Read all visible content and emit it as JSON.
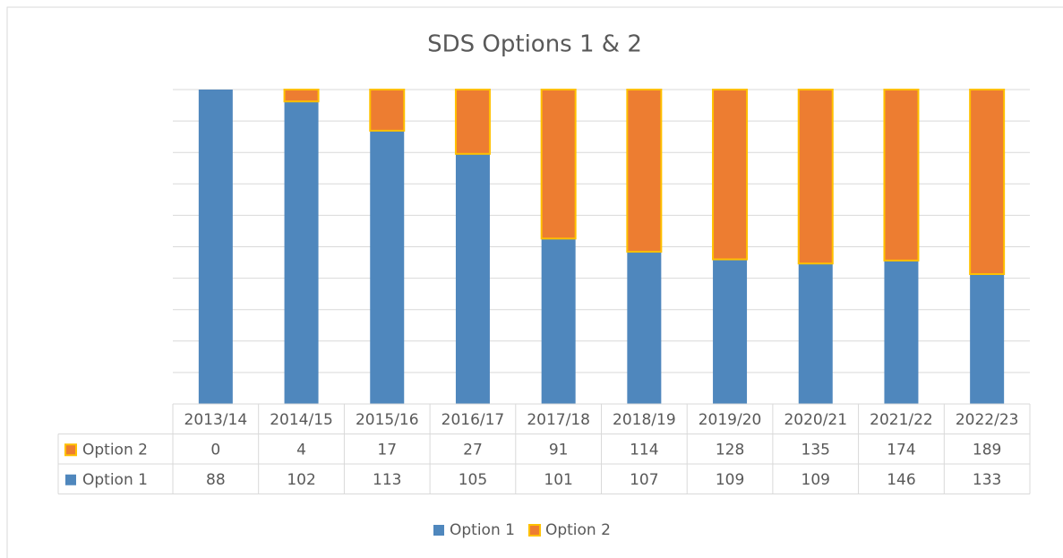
{
  "chart_data": {
    "type": "bar",
    "stack": "percent",
    "title": "SDS Options 1 & 2",
    "categories": [
      "2013/14",
      "2014/15",
      "2015/16",
      "2016/17",
      "2017/18",
      "2018/19",
      "2019/20",
      "2020/21",
      "2021/22",
      "2022/23"
    ],
    "series": [
      {
        "name": "Option 1",
        "color": "#4f87bd",
        "values": [
          88,
          102,
          113,
          105,
          101,
          107,
          109,
          109,
          146,
          133
        ]
      },
      {
        "name": "Option 2",
        "color": "#ed7d31",
        "edge": "#ffc000",
        "values": [
          0,
          4,
          17,
          27,
          91,
          114,
          128,
          135,
          174,
          189
        ]
      }
    ],
    "ylim": [
      0,
      100
    ],
    "yticks": [
      0,
      10,
      20,
      30,
      40,
      50,
      60,
      70,
      80,
      90,
      100
    ],
    "grid": true,
    "data_table": true,
    "legend": "bottom"
  }
}
